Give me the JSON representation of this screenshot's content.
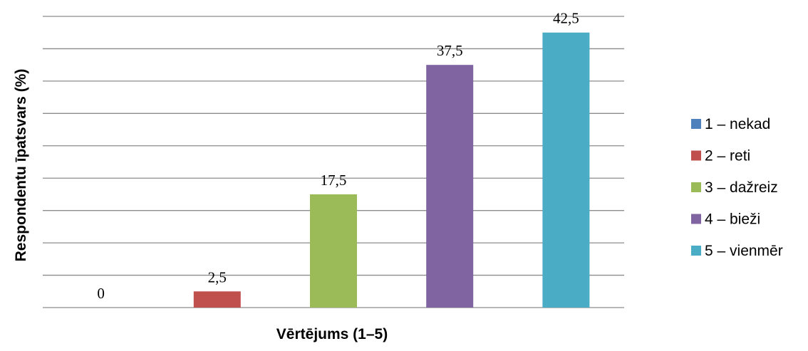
{
  "chart_data": {
    "type": "bar",
    "xlabel": "Vērtējums (1–5)",
    "ylabel": "Respondentu īpatsvars (%)",
    "ylim": [
      0,
      42.5
    ],
    "grid": true,
    "legend_position": "right",
    "categories": [
      "1 – nekad",
      "2 – reti",
      "3 – dažreiz",
      "4 – bieži",
      "5 – vienmēr"
    ],
    "values": [
      0,
      2.5,
      17.5,
      37.5,
      42.5
    ],
    "data_labels": [
      "0",
      "2,5",
      "17,5",
      "37,5",
      "42,5"
    ],
    "colors": [
      "#4f81bd",
      "#c0504d",
      "#9bbb59",
      "#8064a2",
      "#4bacc6"
    ]
  }
}
